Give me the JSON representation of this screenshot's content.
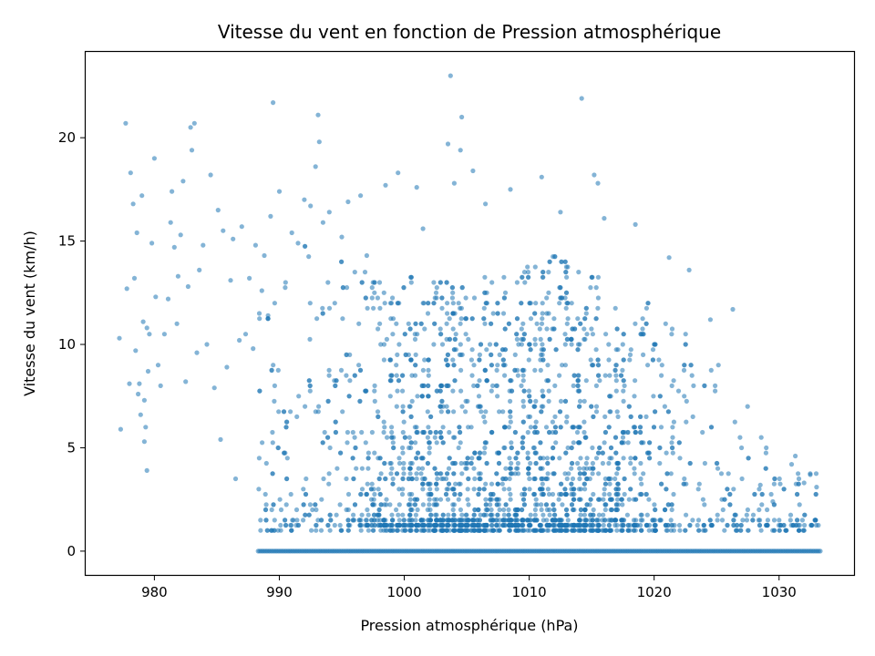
{
  "chart_data": {
    "type": "scatter",
    "title": "Vitesse du vent en fonction de Pression atmosphérique",
    "xlabel": "Pression atmosphérique (hPa)",
    "ylabel": "Vitesse du vent (km/h)",
    "xlim": [
      974.5,
      1036
    ],
    "ylim": [
      -1.15,
      24.15
    ],
    "xticks": [
      980,
      990,
      1000,
      1010,
      1020,
      1030
    ],
    "yticks": [
      0,
      5,
      10,
      15,
      20
    ],
    "xtick_labels": [
      "980",
      "990",
      "1000",
      "1010",
      "1020",
      "1030"
    ],
    "ytick_labels": [
      "0",
      "5",
      "10",
      "15",
      "20"
    ],
    "grid": false,
    "legend": false,
    "marker_color": "#1f77b4",
    "marker_alpha": 0.55,
    "series": [
      {
        "points": [
          [
            977.2,
            10.3
          ],
          [
            977.3,
            5.9
          ],
          [
            977.7,
            20.7
          ],
          [
            977.8,
            12.7
          ],
          [
            978.0,
            8.1
          ],
          [
            978.1,
            18.3
          ],
          [
            978.3,
            16.8
          ],
          [
            978.4,
            13.2
          ],
          [
            978.5,
            9.7
          ],
          [
            978.6,
            15.4
          ],
          [
            978.7,
            7.6
          ],
          [
            978.8,
            8.1
          ],
          [
            978.9,
            6.6
          ],
          [
            979.0,
            17.2
          ],
          [
            979.1,
            11.1
          ],
          [
            979.2,
            7.3
          ],
          [
            979.3,
            6.0
          ],
          [
            979.4,
            10.8
          ],
          [
            979.5,
            8.7
          ],
          [
            979.6,
            10.5
          ],
          [
            979.2,
            5.3
          ],
          [
            979.4,
            3.9
          ],
          [
            979.8,
            14.9
          ],
          [
            980.0,
            19.0
          ],
          [
            980.1,
            12.3
          ],
          [
            980.3,
            9.0
          ],
          [
            980.5,
            8.0
          ],
          [
            980.8,
            10.5
          ],
          [
            981.1,
            12.2
          ],
          [
            981.3,
            15.9
          ],
          [
            981.4,
            17.4
          ],
          [
            981.6,
            14.7
          ],
          [
            981.8,
            11.0
          ],
          [
            981.9,
            13.3
          ],
          [
            982.1,
            15.3
          ],
          [
            982.3,
            17.9
          ],
          [
            982.5,
            8.2
          ],
          [
            982.7,
            12.8
          ],
          [
            982.9,
            20.5
          ],
          [
            983.0,
            19.4
          ],
          [
            983.2,
            20.7
          ],
          [
            983.4,
            9.6
          ],
          [
            983.6,
            13.6
          ],
          [
            983.9,
            14.8
          ],
          [
            984.2,
            10.0
          ],
          [
            984.5,
            18.2
          ],
          [
            984.8,
            7.9
          ],
          [
            985.1,
            16.5
          ],
          [
            985.3,
            5.4
          ],
          [
            985.5,
            15.5
          ],
          [
            985.8,
            8.9
          ],
          [
            986.1,
            13.1
          ],
          [
            986.3,
            15.1
          ],
          [
            986.5,
            3.5
          ],
          [
            986.8,
            10.2
          ],
          [
            987.0,
            15.7
          ],
          [
            987.3,
            10.5
          ],
          [
            987.6,
            13.2
          ],
          [
            987.9,
            9.8
          ],
          [
            988.1,
            14.8
          ],
          [
            988.4,
            11.5
          ],
          [
            988.6,
            12.6
          ],
          [
            988.8,
            14.3
          ],
          [
            989.1,
            11.4
          ],
          [
            989.3,
            16.2
          ],
          [
            989.5,
            21.7
          ],
          [
            990.0,
            17.4
          ],
          [
            990.5,
            13.0
          ],
          [
            991.0,
            15.4
          ],
          [
            991.5,
            14.9
          ],
          [
            992.0,
            17.0
          ],
          [
            992.5,
            16.7
          ],
          [
            992.9,
            18.6
          ],
          [
            993.1,
            21.1
          ],
          [
            993.2,
            19.8
          ],
          [
            993.5,
            15.9
          ],
          [
            994.0,
            16.4
          ],
          [
            995.0,
            15.2
          ],
          [
            995.5,
            16.9
          ],
          [
            996.5,
            17.2
          ],
          [
            997.0,
            14.3
          ],
          [
            998.5,
            17.7
          ],
          [
            999.5,
            18.3
          ],
          [
            1001.0,
            17.6
          ],
          [
            1001.5,
            15.6
          ],
          [
            1003.5,
            19.7
          ],
          [
            1003.7,
            23.0
          ],
          [
            1004.0,
            17.8
          ],
          [
            1004.5,
            19.4
          ],
          [
            1004.6,
            21.0
          ],
          [
            1005.5,
            18.4
          ],
          [
            1006.5,
            16.8
          ],
          [
            1008.5,
            17.5
          ],
          [
            1011.0,
            18.1
          ],
          [
            1012.5,
            16.4
          ],
          [
            1014.2,
            21.9
          ],
          [
            1015.2,
            18.2
          ],
          [
            1015.5,
            17.8
          ],
          [
            1016.0,
            16.1
          ],
          [
            1018.5,
            15.8
          ],
          [
            1021.2,
            14.2
          ],
          [
            1022.8,
            13.6
          ],
          [
            1024.5,
            11.2
          ],
          [
            1026.3,
            11.7
          ],
          [
            1027.0,
            5.0
          ],
          [
            1028.5,
            3.2
          ],
          [
            1029.5,
            2.4
          ],
          [
            1031.0,
            4.2
          ],
          [
            1031.3,
            4.6
          ],
          [
            1032.0,
            3.3
          ],
          [
            1032.5,
            3.7
          ],
          [
            1033.0,
            3.1
          ]
        ]
      }
    ],
    "bulk_cloud": {
      "x_range": [
        988.3,
        1033.3
      ],
      "y_zero_line": 0,
      "y_floor": 1.0,
      "density_peaks_x": [
        1004,
        1013
      ],
      "max_y_profile": [
        [
          988,
          13
        ],
        [
          992,
          15
        ],
        [
          996,
          14
        ],
        [
          1000,
          13.5
        ],
        [
          1004,
          13
        ],
        [
          1008,
          13.5
        ],
        [
          1012,
          14.5
        ],
        [
          1016,
          13
        ],
        [
          1020,
          12
        ],
        [
          1024,
          10
        ],
        [
          1027,
          7.5
        ],
        [
          1030,
          4
        ],
        [
          1033,
          3.7
        ]
      ]
    }
  }
}
